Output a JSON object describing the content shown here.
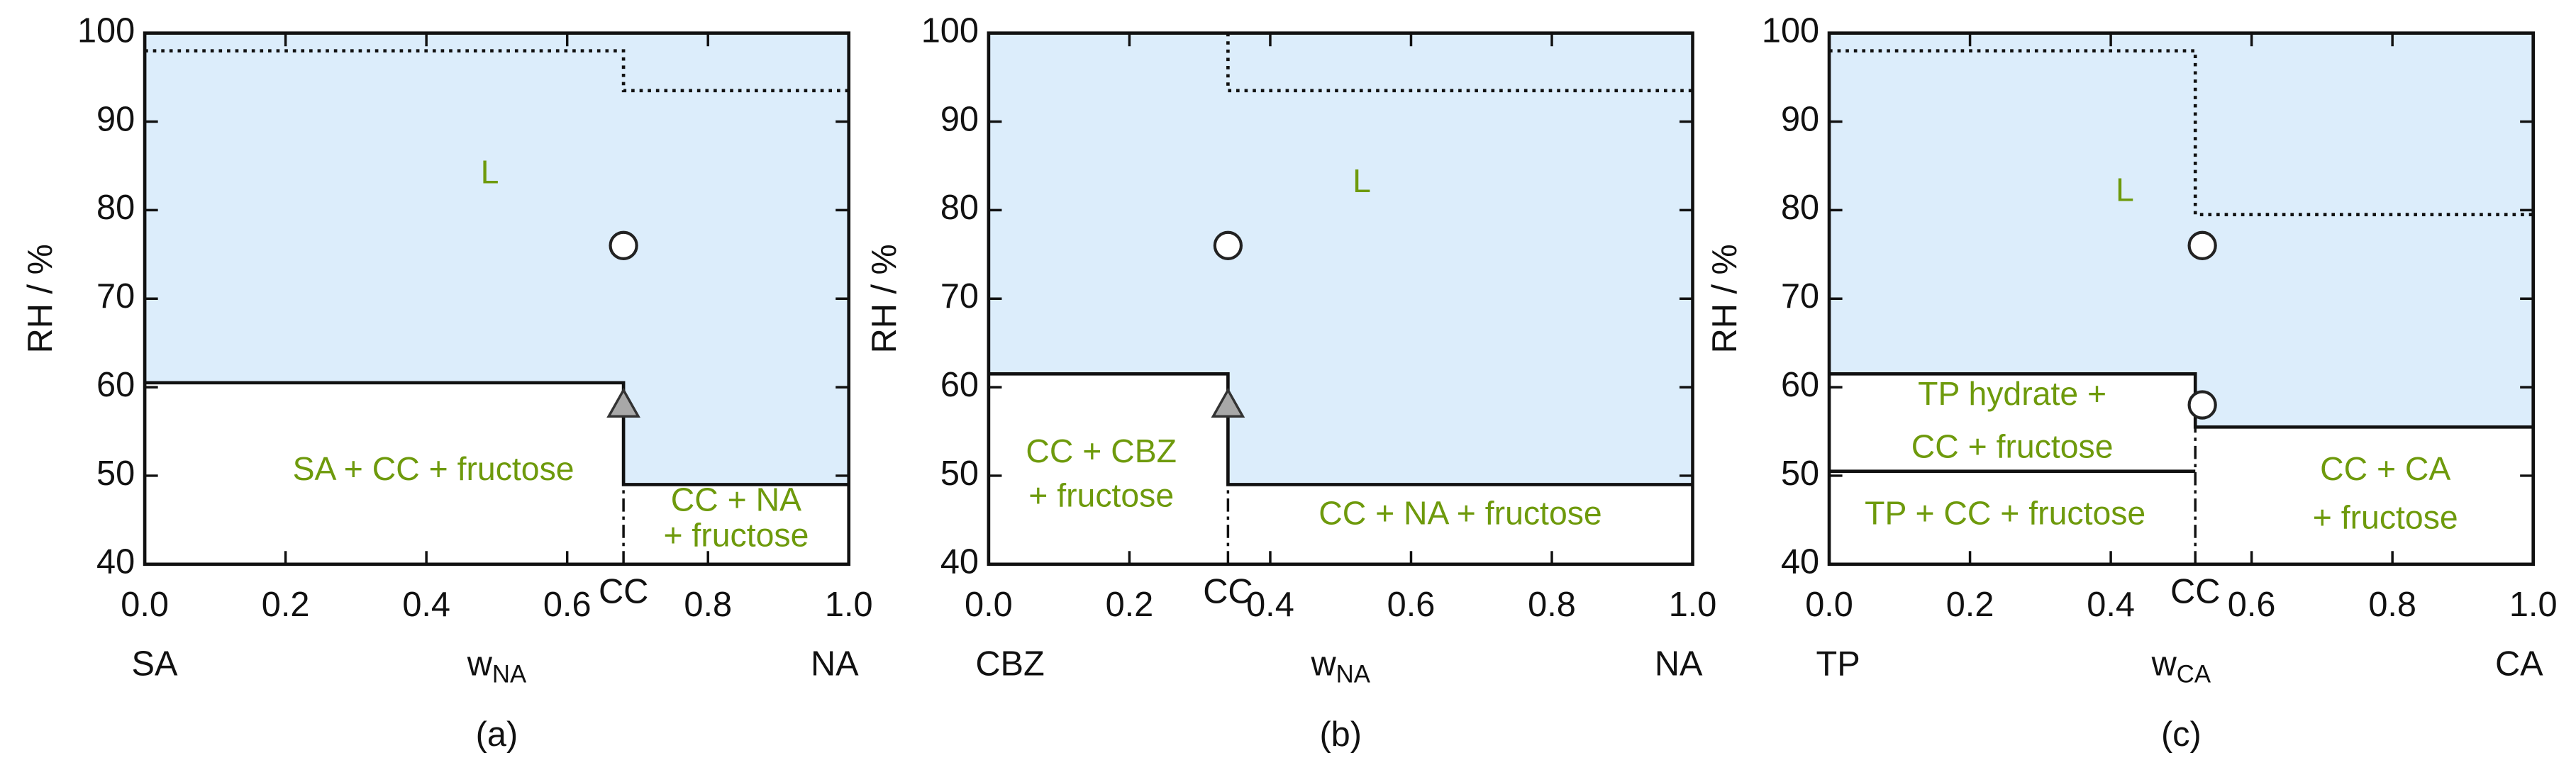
{
  "chart_data": [
    {
      "type": "phase",
      "caption": "(a)",
      "y_label": "RH / %",
      "x_label": "w",
      "x_label_sub": "NA",
      "left_component": "SA",
      "right_component": "NA",
      "cocrystal_label": "CC",
      "cocrystal_x": 0.68,
      "xlim": [
        0,
        1
      ],
      "ylim": [
        40,
        100
      ],
      "xticks": [
        {
          "value": 0,
          "label": "0.0"
        },
        0.2,
        0.4,
        0.6,
        0.8,
        {
          "value": 1,
          "label": "1.0"
        }
      ],
      "yticks": [
        40,
        50,
        60,
        70,
        80,
        90,
        100
      ],
      "liquid_color": "#dcedfb",
      "line_color": "#111111",
      "label_color": "#6e9a0c",
      "solid_boundaries": [
        {
          "x": [
            0,
            0.68,
            0.68,
            1
          ],
          "y": [
            60.5,
            60.5,
            49,
            49
          ]
        }
      ],
      "dotted_boundary": {
        "x": [
          0,
          0.68,
          0.68,
          1
        ],
        "y": [
          98,
          98,
          93.5,
          93.5
        ]
      },
      "points": [
        {
          "x": 0.68,
          "y": 76,
          "marker": "circle"
        },
        {
          "x": 0.68,
          "y": 58,
          "marker": "triangle"
        }
      ],
      "region_labels": [
        [
          "L"
        ],
        [
          "SA + CC + fructose"
        ],
        [
          "CC + NA",
          "+ fructose"
        ]
      ]
    },
    {
      "type": "phase",
      "caption": "(b)",
      "y_label": "RH / %",
      "x_label": "w",
      "x_label_sub": "NA",
      "left_component": "CBZ",
      "right_component": "NA",
      "cocrystal_label": "CC",
      "cocrystal_x": 0.34,
      "xlim": [
        0,
        1
      ],
      "ylim": [
        40,
        100
      ],
      "xticks": [
        {
          "value": 0,
          "label": "0.0"
        },
        0.2,
        0.4,
        0.6,
        0.8,
        {
          "value": 1,
          "label": "1.0"
        }
      ],
      "yticks": [
        40,
        50,
        60,
        70,
        80,
        90,
        100
      ],
      "liquid_color": "#dcedfb",
      "line_color": "#111111",
      "label_color": "#6e9a0c",
      "solid_boundaries": [
        {
          "x": [
            0,
            0.34,
            0.34,
            1
          ],
          "y": [
            61.5,
            61.5,
            49,
            49
          ]
        }
      ],
      "dotted_boundary": {
        "x": [
          0.34,
          0.34,
          1
        ],
        "y": [
          100,
          93.5,
          93.5
        ]
      },
      "points": [
        {
          "x": 0.34,
          "y": 76,
          "marker": "circle"
        },
        {
          "x": 0.34,
          "y": 58,
          "marker": "triangle"
        }
      ],
      "region_labels": [
        [
          "L"
        ],
        [
          "CC + CBZ",
          "+ fructose"
        ],
        [
          "CC + NA + fructose"
        ]
      ]
    },
    {
      "type": "phase",
      "caption": "(c)",
      "y_label": "RH / %",
      "x_label": "w",
      "x_label_sub": "CA",
      "left_component": "TP",
      "right_component": "CA",
      "cocrystal_label": "CC",
      "cocrystal_x": 0.52,
      "xlim": [
        0,
        1
      ],
      "ylim": [
        40,
        100
      ],
      "xticks": [
        {
          "value": 0,
          "label": "0.0"
        },
        0.2,
        0.4,
        0.6,
        0.8,
        {
          "value": 1,
          "label": "1.0"
        }
      ],
      "yticks": [
        40,
        50,
        60,
        70,
        80,
        90,
        100
      ],
      "liquid_color": "#dcedfb",
      "line_color": "#111111",
      "label_color": "#6e9a0c",
      "solid_boundaries": [
        {
          "x": [
            0,
            0.52,
            0.52,
            1
          ],
          "y": [
            61.5,
            61.5,
            55.5,
            55.5
          ]
        },
        {
          "x": [
            0,
            0.52
          ],
          "y": [
            50.5,
            50.5
          ]
        }
      ],
      "dotted_boundary": {
        "x": [
          0,
          0.52,
          0.52,
          1
        ],
        "y": [
          98,
          98,
          79.5,
          79.5
        ]
      },
      "points": [
        {
          "x": 0.53,
          "y": 76,
          "marker": "circle"
        },
        {
          "x": 0.53,
          "y": 58,
          "marker": "circle"
        }
      ],
      "region_labels": [
        [
          "L"
        ],
        [
          "TP hydrate +",
          "CC + fructose"
        ],
        [
          "TP + CC + fructose"
        ],
        [
          "CC + CA",
          "+ fructose"
        ]
      ]
    }
  ]
}
